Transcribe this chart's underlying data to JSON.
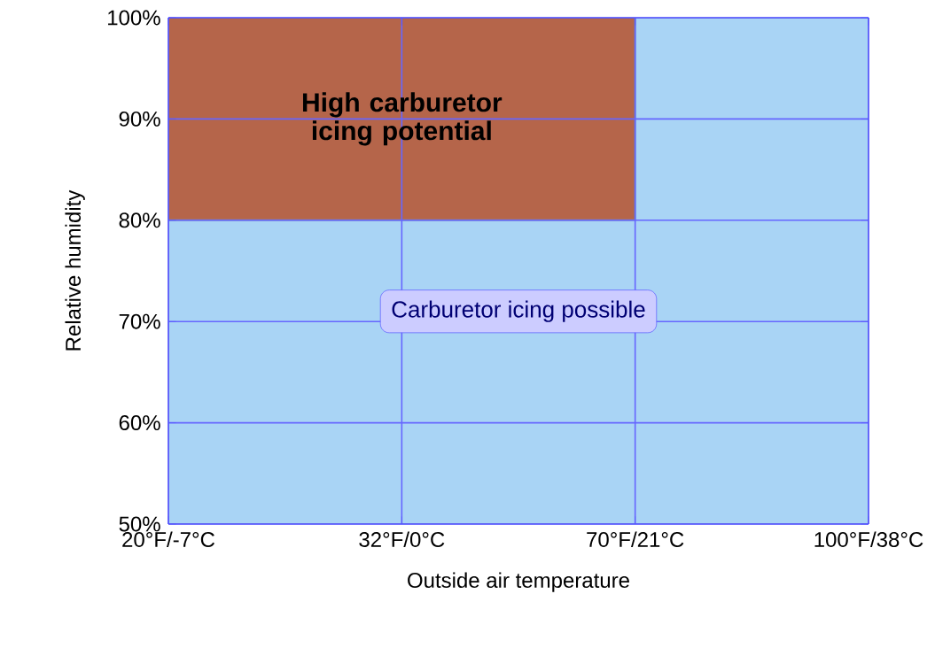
{
  "chart_data": {
    "type": "area",
    "xlabel": "Outside air temperature",
    "ylabel": "Relative humidity",
    "categories": [
      "20°F/-7°C",
      "32°F/0°C",
      "70°F/21°C",
      "100°F/38°C"
    ],
    "ylim": [
      50,
      100
    ],
    "yticks": [
      {
        "value": 50,
        "label": "50%"
      },
      {
        "value": 60,
        "label": "60%"
      },
      {
        "value": 70,
        "label": "70%"
      },
      {
        "value": 80,
        "label": "80%"
      },
      {
        "value": 90,
        "label": "90%"
      },
      {
        "value": 100,
        "label": "100%"
      }
    ],
    "grid": true,
    "series": [
      {
        "name": "Carburetor icing possible",
        "values": [
          80,
          80,
          80,
          100
        ],
        "color": "#a9d4f5"
      },
      {
        "name": "High carburetor icing potential",
        "values": [
          100,
          100,
          100,
          null
        ],
        "color": "#b5654a"
      }
    ]
  }
}
